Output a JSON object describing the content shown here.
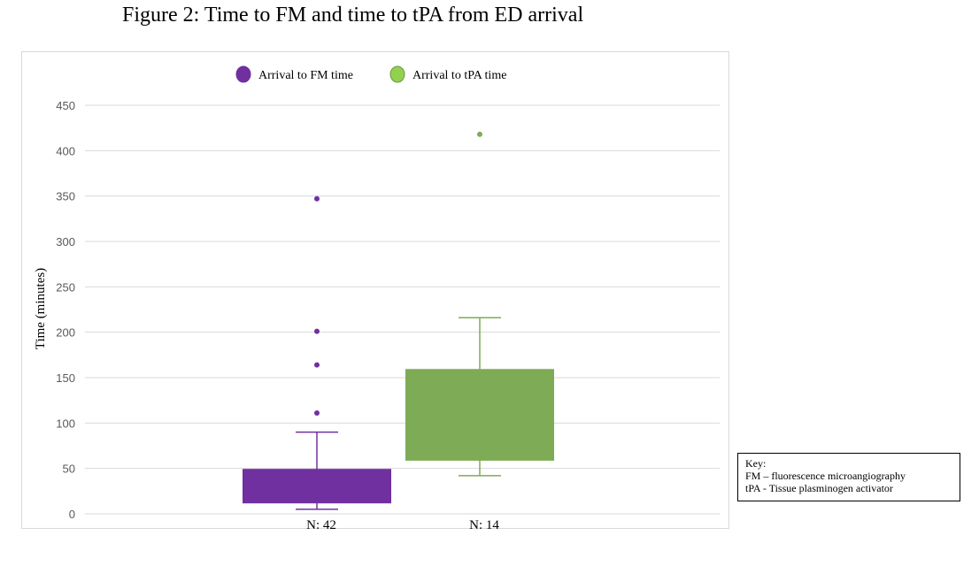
{
  "figure_title": "Figure 2: Time to FM and time to tPA from ED arrival",
  "key": {
    "title": "Key:",
    "lines": [
      "FM – fluorescence microangiography",
      "tPA - Tissue plasminogen activator"
    ]
  },
  "colors": {
    "fm": "#7030a0",
    "tpa": "#7eab55",
    "tpa_legend": "#92d050",
    "grid": "#d9d9d9",
    "axis_text": "#595959"
  },
  "chart_data": {
    "type": "box",
    "title": "",
    "xlabel": "",
    "ylabel": "Time (minutes)",
    "ylim": [
      0,
      450
    ],
    "yticks": [
      0,
      50,
      100,
      150,
      200,
      250,
      300,
      350,
      400,
      450
    ],
    "grid": true,
    "legend_position": "top-center",
    "series": [
      {
        "name": "Arrival to FM time",
        "n_label": "N: 42",
        "q1": 12,
        "median": 48,
        "q3": 49,
        "whisker_low": 5,
        "whisker_high": 90,
        "outliers": [
          111,
          164,
          201,
          347
        ]
      },
      {
        "name": "Arrival to tPA time",
        "n_label": "N: 14",
        "q1": 59,
        "median": 158,
        "q3": 159,
        "whisker_low": 42,
        "whisker_high": 216,
        "outliers": [
          418
        ]
      }
    ]
  }
}
